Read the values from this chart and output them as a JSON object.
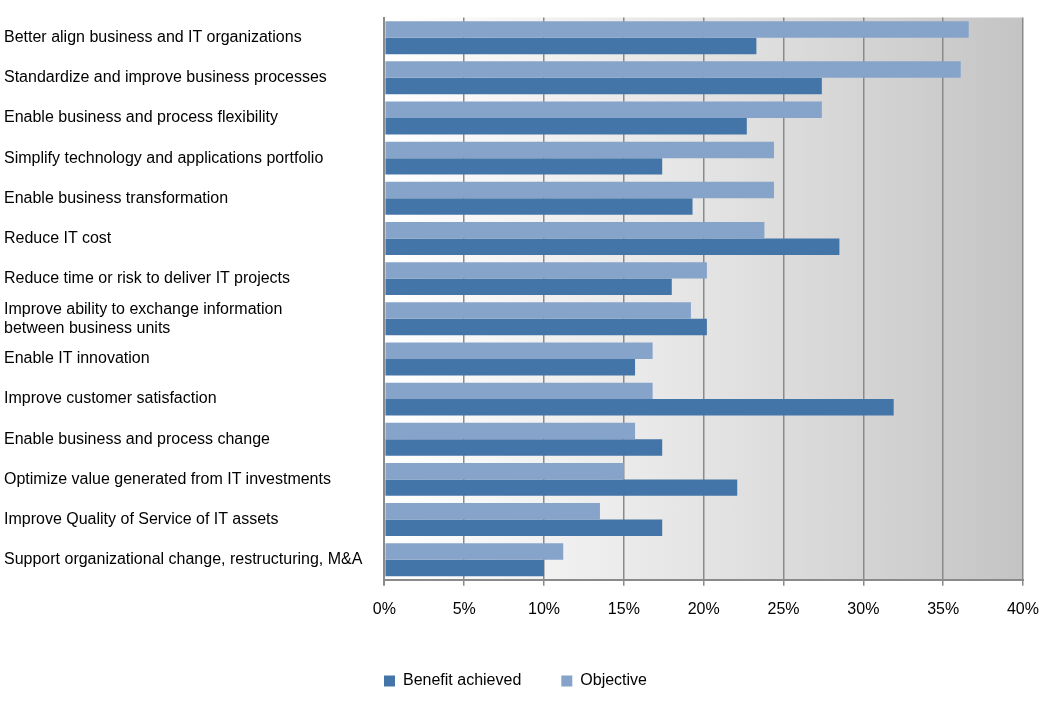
{
  "chart_data": {
    "type": "bar",
    "orientation": "horizontal",
    "categories": [
      "Better align business and IT organizations",
      "Standardize and improve business processes",
      "Enable business and process flexibility",
      "Simplify technology and applications portfolio",
      "Enable business transformation",
      "Reduce IT cost",
      "Reduce time or risk to deliver IT projects",
      "Improve ability to exchange information\nbetween business units",
      "Enable IT innovation",
      "Improve customer satisfaction",
      "Enable business and process change",
      "Optimize value generated from IT investments",
      "Improve Quality of Service of IT assets",
      "Support organizational change, restructuring, M&A"
    ],
    "series": [
      {
        "name": "Benefit achieved",
        "color": "#4475a8",
        "values": [
          23.3,
          27.4,
          22.7,
          17.4,
          19.3,
          28.5,
          18.0,
          20.2,
          15.7,
          31.9,
          17.4,
          22.1,
          17.4,
          10.0
        ]
      },
      {
        "name": "Objective",
        "color": "#86a3ca",
        "values": [
          36.6,
          36.1,
          27.4,
          24.4,
          24.4,
          23.8,
          20.2,
          19.2,
          16.8,
          16.8,
          15.7,
          15.0,
          13.5,
          11.2
        ]
      }
    ],
    "xlim": [
      0,
      40
    ],
    "xticks": [
      {
        "value": 0,
        "label": "0%"
      },
      {
        "value": 5,
        "label": "5%"
      },
      {
        "value": 10,
        "label": "10%"
      },
      {
        "value": 15,
        "label": "15%"
      },
      {
        "value": 20,
        "label": "20%"
      },
      {
        "value": 25,
        "label": "25%"
      },
      {
        "value": 30,
        "label": "30%"
      },
      {
        "value": 35,
        "label": "35%"
      },
      {
        "value": 40,
        "label": "40%"
      }
    ],
    "grid": "x",
    "legend": "bottom"
  }
}
